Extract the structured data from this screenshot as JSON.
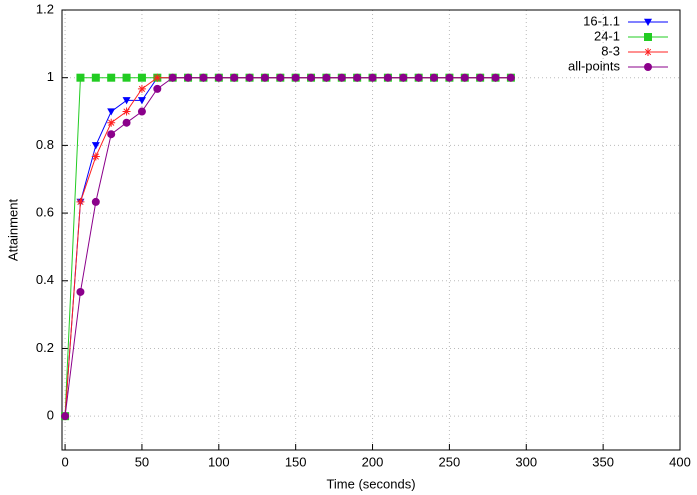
{
  "chart_data": {
    "type": "line",
    "xlabel": "Time (seconds)",
    "ylabel": "Attainment",
    "x": [
      0,
      10,
      20,
      30,
      40,
      50,
      60,
      70,
      80,
      90,
      100,
      110,
      120,
      130,
      140,
      150,
      160,
      170,
      180,
      190,
      200,
      210,
      220,
      230,
      240,
      250,
      260,
      270,
      280,
      290
    ],
    "series": [
      {
        "name": "16-1.1",
        "color": "#0000ff",
        "marker": "triangle-down",
        "values": [
          0,
          0.633,
          0.8,
          0.9,
          0.933,
          0.933,
          1,
          1,
          1,
          1,
          1,
          1,
          1,
          1,
          1,
          1,
          1,
          1,
          1,
          1,
          1,
          1,
          1,
          1,
          1,
          1,
          1,
          1,
          1,
          1
        ]
      },
      {
        "name": "24-1",
        "color": "#22cc22",
        "marker": "square",
        "values": [
          0,
          1,
          1,
          1,
          1,
          1,
          1,
          1,
          1,
          1,
          1,
          1,
          1,
          1,
          1,
          1,
          1,
          1,
          1,
          1,
          1,
          1,
          1,
          1,
          1,
          1,
          1,
          1,
          1,
          1
        ]
      },
      {
        "name": "8-3",
        "color": "#ff2020",
        "marker": "star",
        "values": [
          0,
          0.633,
          0.767,
          0.867,
          0.9,
          0.967,
          1,
          1,
          1,
          1,
          1,
          1,
          1,
          1,
          1,
          1,
          1,
          1,
          1,
          1,
          1,
          1,
          1,
          1,
          1,
          1,
          1,
          1,
          1,
          1
        ]
      },
      {
        "name": "all-points",
        "color": "#8b008b",
        "marker": "circle",
        "values": [
          0,
          0.367,
          0.633,
          0.833,
          0.867,
          0.9,
          0.967,
          1,
          1,
          1,
          1,
          1,
          1,
          1,
          1,
          1,
          1,
          1,
          1,
          1,
          1,
          1,
          1,
          1,
          1,
          1,
          1,
          1,
          1,
          1
        ]
      }
    ],
    "xlim": [
      -2,
      400
    ],
    "xticks": [
      0,
      50,
      100,
      150,
      200,
      250,
      300,
      350,
      400
    ],
    "ylim": [
      -0.1,
      1.2
    ],
    "yticks": [
      0,
      0.2,
      0.4,
      0.6,
      0.8,
      1,
      1.2
    ],
    "grid": true,
    "legend": "top-right"
  }
}
